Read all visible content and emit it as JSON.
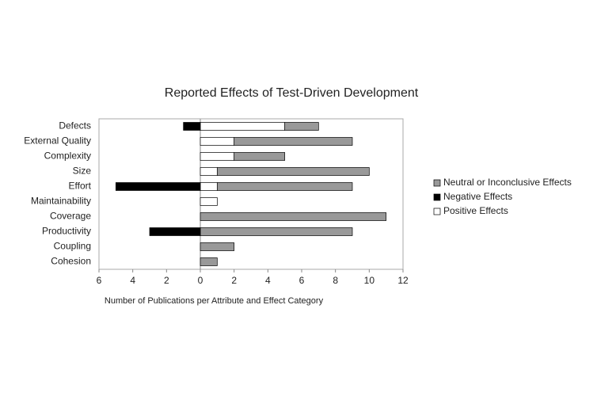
{
  "chart_data": {
    "type": "diverging-bar",
    "title": "Reported Effects of Test-Driven Development",
    "x_label": "Number of Publications per Attribute and Effect Category",
    "categories": [
      "Defects",
      "External Quality",
      "Complexity",
      "Size",
      "Effort",
      "Maintainability",
      "Coverage",
      "Productivity",
      "Coupling",
      "Cohesion"
    ],
    "series": [
      {
        "name": "Neutral or Inconclusive Effects",
        "color": "#999999",
        "values": [
          2,
          7,
          3,
          9,
          8,
          null,
          11,
          9,
          2,
          1
        ]
      },
      {
        "name": "Negative Effects",
        "color": "#000000",
        "values": [
          -1,
          null,
          null,
          null,
          -5,
          null,
          null,
          -3,
          null,
          null
        ]
      },
      {
        "name": "Positive Effects",
        "color": "#ffffff",
        "values": [
          5,
          2,
          2,
          1,
          1,
          1,
          null,
          null,
          null,
          null
        ]
      }
    ],
    "xlim": [
      -6,
      12
    ],
    "xticks": [
      {
        "value": -6,
        "label": "6"
      },
      {
        "value": -4,
        "label": "4"
      },
      {
        "value": -2,
        "label": "2"
      },
      0,
      2,
      4,
      6,
      8,
      10,
      12
    ],
    "legend": "right"
  }
}
